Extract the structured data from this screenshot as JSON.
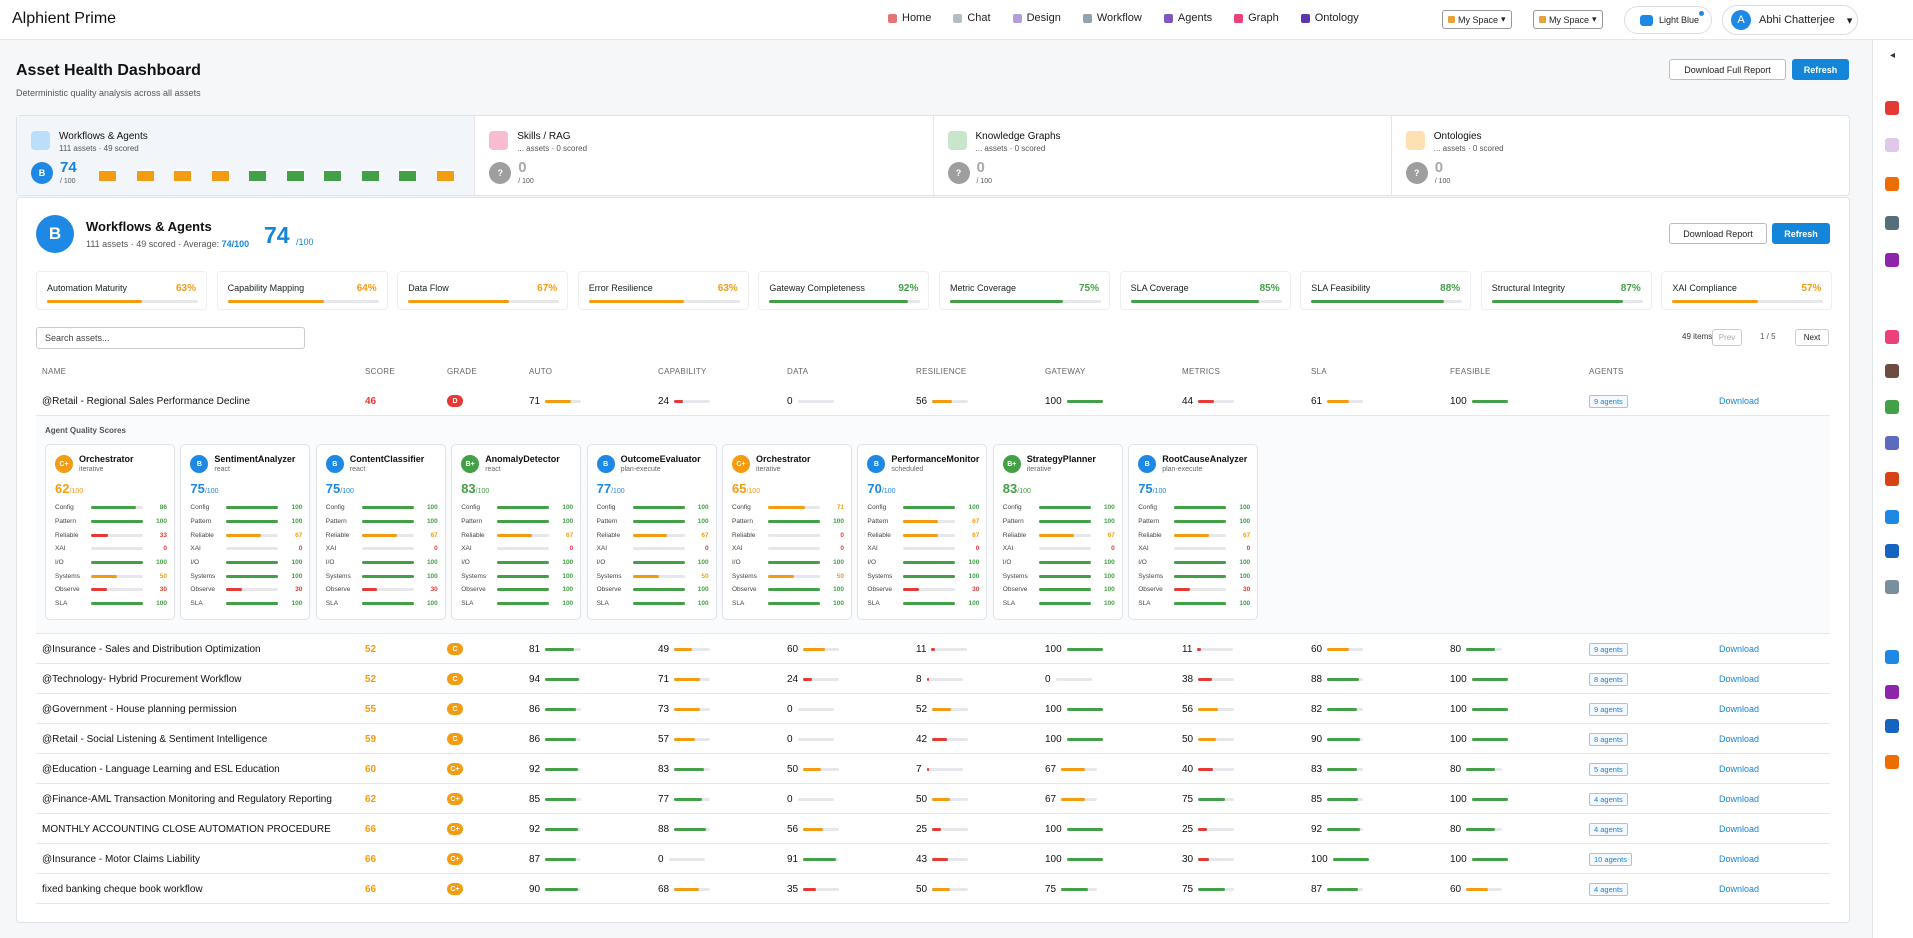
{
  "app": {
    "title": "Alphient Prime"
  },
  "nav": [
    {
      "label": "Home",
      "color": "#e57373"
    },
    {
      "label": "Chat",
      "color": "#b0bec5"
    },
    {
      "label": "Design",
      "color": "#b39ddb"
    },
    {
      "label": "Workflow",
      "color": "#90a4ae"
    },
    {
      "label": "Agents",
      "color": "#7e57c2"
    },
    {
      "label": "Graph",
      "color": "#ec407a"
    },
    {
      "label": "Ontology",
      "color": "#5e35b1"
    }
  ],
  "spaces": [
    "My Space",
    "My Space"
  ],
  "theme": {
    "label": "Light Blue"
  },
  "user": {
    "initial": "A",
    "name": "Abhi Chatterjee"
  },
  "header": {
    "title": "Asset Health Dashboard",
    "subtitle": "Deterministic quality analysis across all assets",
    "download_full": "Download Full Report",
    "refresh": "Refresh"
  },
  "categories": [
    {
      "name": "Workflows & Agents",
      "meta": "111 assets · 49 scored",
      "grade": "B",
      "score": "74",
      "den": "/ 100",
      "color": "#1e88e5",
      "icon_color": "#bbdefb"
    },
    {
      "name": "Skills / RAG",
      "meta": "... assets · 0 scored",
      "grade": "?",
      "score": "0",
      "den": "/ 100",
      "color": "#9e9e9e",
      "icon_color": "#f8bbd0"
    },
    {
      "name": "Knowledge Graphs",
      "meta": "... assets · 0 scored",
      "grade": "?",
      "score": "0",
      "den": "/ 100",
      "color": "#9e9e9e",
      "icon_color": "#c8e6c9"
    },
    {
      "name": "Ontologies",
      "meta": "... assets · 0 scored",
      "grade": "?",
      "score": "0",
      "den": "/ 100",
      "color": "#9e9e9e",
      "icon_color": "#ffe0b2"
    }
  ],
  "spark_colors": [
    "#f39c12",
    "#f39c12",
    "#f39c12",
    "#f39c12",
    "#43a047",
    "#43a047",
    "#43a047",
    "#43a047",
    "#43a047",
    "#f39c12"
  ],
  "section": {
    "grade": "B",
    "title": "Workflows & Agents",
    "meta": "111 assets · 49 scored · Average: ",
    "avg": "74/100",
    "score": "74",
    "den": "/100",
    "download": "Download Report",
    "refresh": "Refresh"
  },
  "metrics": [
    {
      "name": "Automation Maturity",
      "value": 63,
      "label": "63%"
    },
    {
      "name": "Capability Mapping",
      "value": 64,
      "label": "64%"
    },
    {
      "name": "Data Flow",
      "value": 67,
      "label": "67%"
    },
    {
      "name": "Error Resilience",
      "value": 63,
      "label": "63%"
    },
    {
      "name": "Gateway Completeness",
      "value": 92,
      "label": "92%"
    },
    {
      "name": "Metric Coverage",
      "value": 75,
      "label": "75%"
    },
    {
      "name": "SLA Coverage",
      "value": 85,
      "label": "85%"
    },
    {
      "name": "SLA Feasibility",
      "value": 88,
      "label": "88%"
    },
    {
      "name": "Structural Integrity",
      "value": 87,
      "label": "87%"
    },
    {
      "name": "XAI Compliance",
      "value": 57,
      "label": "57%"
    }
  ],
  "search": {
    "placeholder": "Search assets..."
  },
  "pager": {
    "count": "49 items",
    "prev": "Prev",
    "page": "1 / 5",
    "next": "Next"
  },
  "columns": [
    "Name",
    "Score",
    "Grade",
    "Auto",
    "Capability",
    "Data",
    "Resilience",
    "Gateway",
    "Metrics",
    "SLA",
    "Feasible",
    "Agents"
  ],
  "expand_title": "Agent Quality Scores",
  "agent_labels": [
    "Config",
    "Pattern",
    "Reliable",
    "XAI",
    "I/O",
    "Systems",
    "Observe",
    "SLA"
  ],
  "agents": [
    {
      "name": "Orchestrator",
      "pattern": "iterative",
      "grade": "C+",
      "score": "62",
      "den": "/100",
      "vals": [
        86,
        100,
        33,
        0,
        100,
        50,
        30,
        100
      ]
    },
    {
      "name": "SentimentAnalyzer",
      "pattern": "react",
      "grade": "B",
      "score": "75",
      "den": "/100",
      "vals": [
        100,
        100,
        67,
        0,
        100,
        100,
        30,
        100
      ]
    },
    {
      "name": "ContentClassifier",
      "pattern": "react",
      "grade": "B",
      "score": "75",
      "den": "/100",
      "vals": [
        100,
        100,
        67,
        0,
        100,
        100,
        30,
        100
      ]
    },
    {
      "name": "AnomalyDetector",
      "pattern": "react",
      "grade": "B+",
      "score": "83",
      "den": "/100",
      "vals": [
        100,
        100,
        67,
        0,
        100,
        100,
        100,
        100
      ]
    },
    {
      "name": "OutcomeEvaluator",
      "pattern": "plan-execute",
      "grade": "B",
      "score": "77",
      "den": "/100",
      "vals": [
        100,
        100,
        67,
        0,
        100,
        50,
        100,
        100
      ]
    },
    {
      "name": "Orchestrator",
      "pattern": "iterative",
      "grade": "C+",
      "score": "65",
      "den": "/100",
      "vals": [
        71,
        100,
        0,
        0,
        100,
        50,
        100,
        100
      ]
    },
    {
      "name": "PerformanceMonitor",
      "pattern": "scheduled",
      "grade": "B",
      "score": "70",
      "den": "/100",
      "vals": [
        100,
        67,
        67,
        0,
        100,
        100,
        30,
        100
      ]
    },
    {
      "name": "StrategyPlanner",
      "pattern": "iterative",
      "grade": "B+",
      "score": "83",
      "den": "/100",
      "vals": [
        100,
        100,
        67,
        0,
        100,
        100,
        100,
        100
      ]
    },
    {
      "name": "RootCauseAnalyzer",
      "pattern": "plan-execute",
      "grade": "B",
      "score": "75",
      "den": "/100",
      "vals": [
        100,
        100,
        67,
        0,
        100,
        100,
        30,
        100
      ]
    }
  ],
  "rows": [
    {
      "name": "@Retail - Regional Sales Performance Decline",
      "score": "46",
      "grade": "D",
      "vals": [
        71,
        24,
        0,
        56,
        100,
        44,
        61,
        100
      ],
      "agents": "9 agents",
      "download": "Download"
    },
    {
      "name": "@Insurance - Sales and Distribution Optimization",
      "score": "52",
      "grade": "C",
      "vals": [
        81,
        49,
        60,
        11,
        100,
        11,
        60,
        80
      ],
      "agents": "9 agents",
      "download": "Download"
    },
    {
      "name": "@Technology- Hybrid Procurement Workflow",
      "score": "52",
      "grade": "C",
      "vals": [
        94,
        71,
        24,
        8,
        0,
        38,
        88,
        100
      ],
      "agents": "8 agents",
      "download": "Download"
    },
    {
      "name": "@Government - House planning permission",
      "score": "55",
      "grade": "C",
      "vals": [
        86,
        73,
        0,
        52,
        100,
        56,
        82,
        100
      ],
      "agents": "9 agents",
      "download": "Download"
    },
    {
      "name": "@Retail - Social Listening & Sentiment Intelligence",
      "score": "59",
      "grade": "C",
      "vals": [
        86,
        57,
        0,
        42,
        100,
        50,
        90,
        100
      ],
      "agents": "8 agents",
      "download": "Download"
    },
    {
      "name": "@Education - Language Learning and ESL Education",
      "score": "60",
      "grade": "C+",
      "vals": [
        92,
        83,
        50,
        7,
        67,
        40,
        83,
        80
      ],
      "agents": "5 agents",
      "download": "Download"
    },
    {
      "name": "@Finance-AML Transaction Monitoring and Regulatory Reporting",
      "score": "62",
      "grade": "C+",
      "vals": [
        85,
        77,
        0,
        50,
        67,
        75,
        85,
        100
      ],
      "agents": "4 agents",
      "download": "Download"
    },
    {
      "name": "MONTHLY ACCOUNTING CLOSE AUTOMATION PROCEDURE",
      "score": "66",
      "grade": "C+",
      "vals": [
        92,
        88,
        56,
        25,
        100,
        25,
        92,
        80
      ],
      "agents": "4 agents",
      "download": "Download"
    },
    {
      "name": "@Insurance - Motor Claims Liability",
      "score": "66",
      "grade": "C+",
      "vals": [
        87,
        0,
        91,
        43,
        100,
        30,
        100,
        100
      ],
      "agents": "10 agents",
      "download": "Download"
    },
    {
      "name": "fixed banking cheque book workflow",
      "score": "66",
      "grade": "C+",
      "vals": [
        90,
        68,
        35,
        50,
        75,
        75,
        87,
        60
      ],
      "agents": "4 agents",
      "download": "Download"
    }
  ],
  "rail": [
    "#e53935",
    "#e0c8e8",
    "#ef6c00",
    "#546e7a",
    "#8e24aa",
    "#ec407a",
    "#6d4c41",
    "#43a047",
    "#5c6bc0",
    "#d84315",
    "#1e88e5",
    "#1565c0",
    "#78909c",
    "#1e88e5",
    "#8e24aa",
    "#1565c0",
    "#ef6c00"
  ]
}
